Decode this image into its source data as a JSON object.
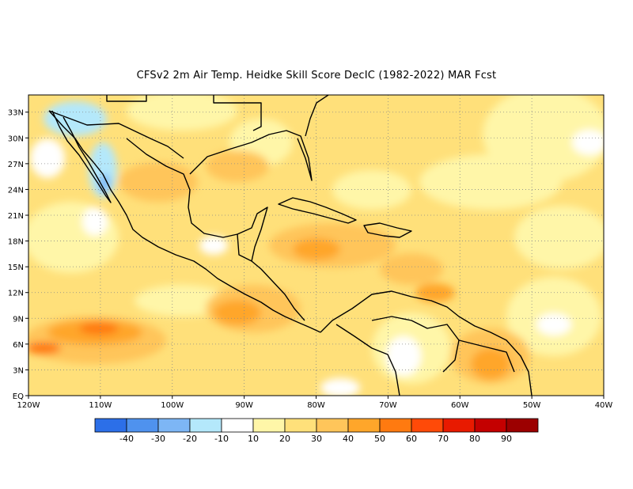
{
  "title": "CFSv2  2m Air Temp. Heidke Skill Score DecIC (1982-2022) MAR Fcst",
  "map": {
    "lon_range": [
      -120,
      -40
    ],
    "lat_range": [
      0,
      35
    ],
    "lon_ticks": [
      "120W",
      "110W",
      "100W",
      "90W",
      "80W",
      "70W",
      "60W",
      "50W",
      "40W"
    ],
    "lat_ticks": [
      "EQ",
      "3N",
      "6N",
      "9N",
      "12N",
      "15N",
      "18N",
      "21N",
      "24N",
      "27N",
      "30N",
      "33N"
    ],
    "gridlines": "dotted"
  },
  "colorbar": {
    "labels": [
      "-40",
      "-30",
      "-20",
      "-10",
      "10",
      "20",
      "30",
      "40",
      "50",
      "60",
      "70",
      "80",
      "90"
    ],
    "colors": [
      "#2c6fe8",
      "#4f92ee",
      "#7db6f5",
      "#b4e8fb",
      "#ffffff",
      "#fff6a8",
      "#ffe07a",
      "#ffc55a",
      "#ffa62a",
      "#ff7a10",
      "#ff4a08",
      "#e81a00",
      "#c40000",
      "#9c0000"
    ]
  }
}
